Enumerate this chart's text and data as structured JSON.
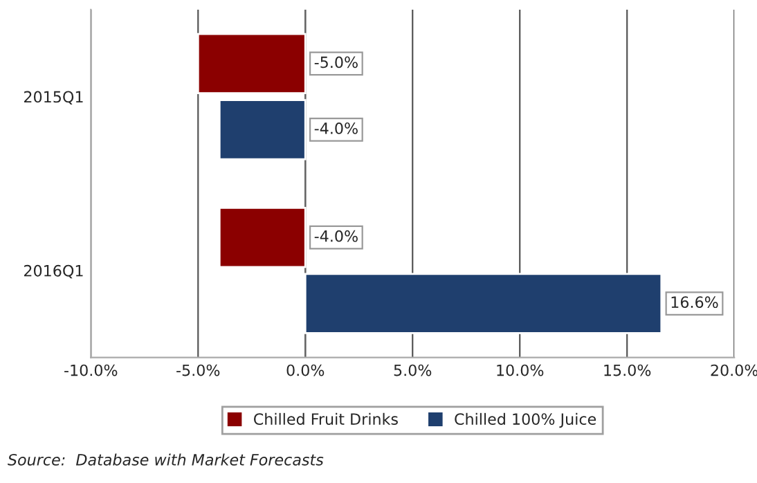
{
  "chart_data": {
    "type": "bar",
    "orientation": "horizontal",
    "categories": [
      "2015Q1",
      "2016Q1"
    ],
    "series": [
      {
        "name": "Chilled Fruit Drinks",
        "color": "#8b0000",
        "values": [
          -5.0,
          -4.0
        ],
        "value_labels": [
          "-5.0%",
          "-4.0%"
        ]
      },
      {
        "name": "Chilled 100% Juice",
        "color": "#1f3f6e",
        "values": [
          -4.0,
          16.6
        ],
        "value_labels": [
          "-4.0%",
          "16.6%"
        ]
      }
    ],
    "xlim": [
      -10,
      20
    ],
    "xticks": [
      {
        "value": -10,
        "label": "-10.0%"
      },
      {
        "value": -5,
        "label": "-5.0%"
      },
      {
        "value": 0,
        "label": "0.0%"
      },
      {
        "value": 5,
        "label": "5.0%"
      },
      {
        "value": 10,
        "label": "10.0%"
      },
      {
        "value": 15,
        "label": "15.0%"
      },
      {
        "value": 20,
        "label": "20.0%"
      }
    ],
    "grid": "x",
    "legend": "bottom",
    "annotations": [
      "Source:  Database with Market Forecasts"
    ]
  }
}
